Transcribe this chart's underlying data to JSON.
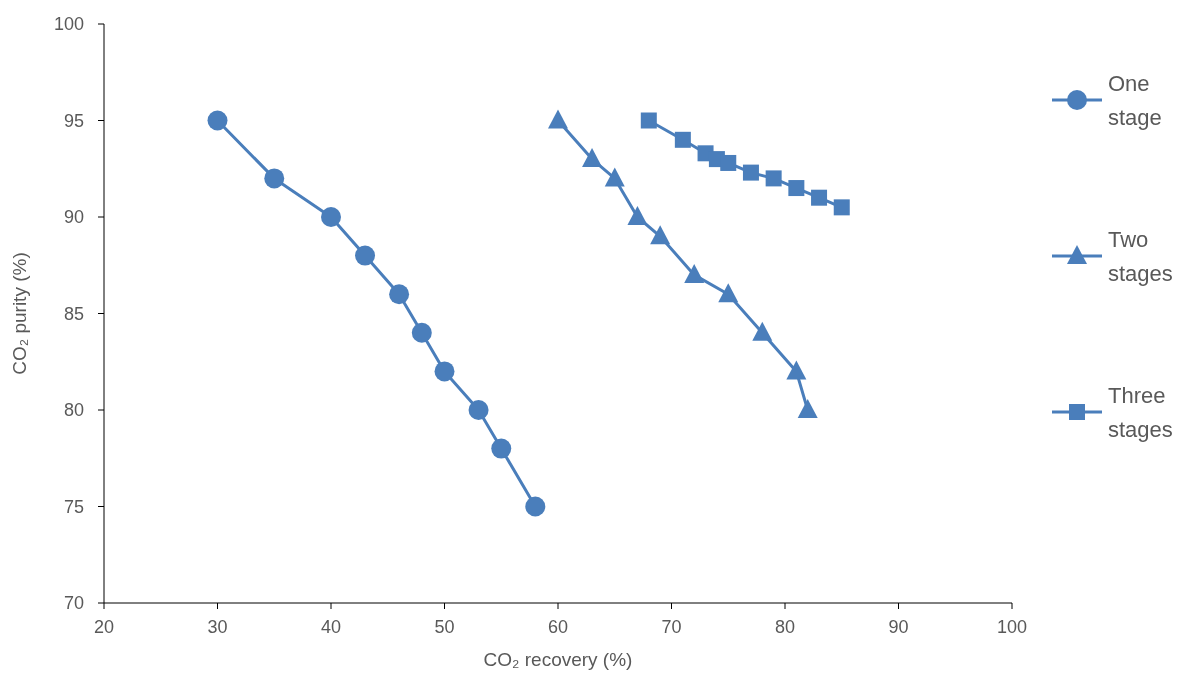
{
  "chart_data": {
    "type": "line",
    "xlabel": "CO₂ recovery (%)",
    "ylabel": "CO₂ purity (%)",
    "xlim": [
      20,
      100
    ],
    "xticks": [
      20,
      30,
      40,
      50,
      60,
      70,
      80,
      90,
      100
    ],
    "ylim": [
      70,
      100
    ],
    "yticks": [
      70,
      75,
      80,
      85,
      90,
      95,
      100
    ],
    "grid": false,
    "legend": "right",
    "series": [
      {
        "name": "One stage",
        "color": "#4a7ebb",
        "marker": "circle",
        "x": [
          30,
          35,
          40,
          43,
          46,
          48,
          50,
          53,
          55,
          58
        ],
        "values": [
          95,
          92,
          90,
          88,
          86,
          84,
          82,
          80,
          78,
          75
        ]
      },
      {
        "name": "Two stages",
        "color": "#4a7ebb",
        "marker": "triangle",
        "x": [
          60,
          63,
          65,
          67,
          69,
          72,
          75,
          78,
          81,
          82
        ],
        "values": [
          95,
          93,
          92,
          90,
          89,
          87,
          86,
          84,
          82,
          80
        ]
      },
      {
        "name": "Three stages",
        "color": "#4a7ebb",
        "marker": "square",
        "x": [
          68,
          71,
          73,
          74,
          75,
          77,
          79,
          81,
          83,
          85
        ],
        "values": [
          95,
          94,
          93.3,
          93,
          92.8,
          92.3,
          92,
          91.5,
          91,
          90.5
        ]
      }
    ]
  }
}
